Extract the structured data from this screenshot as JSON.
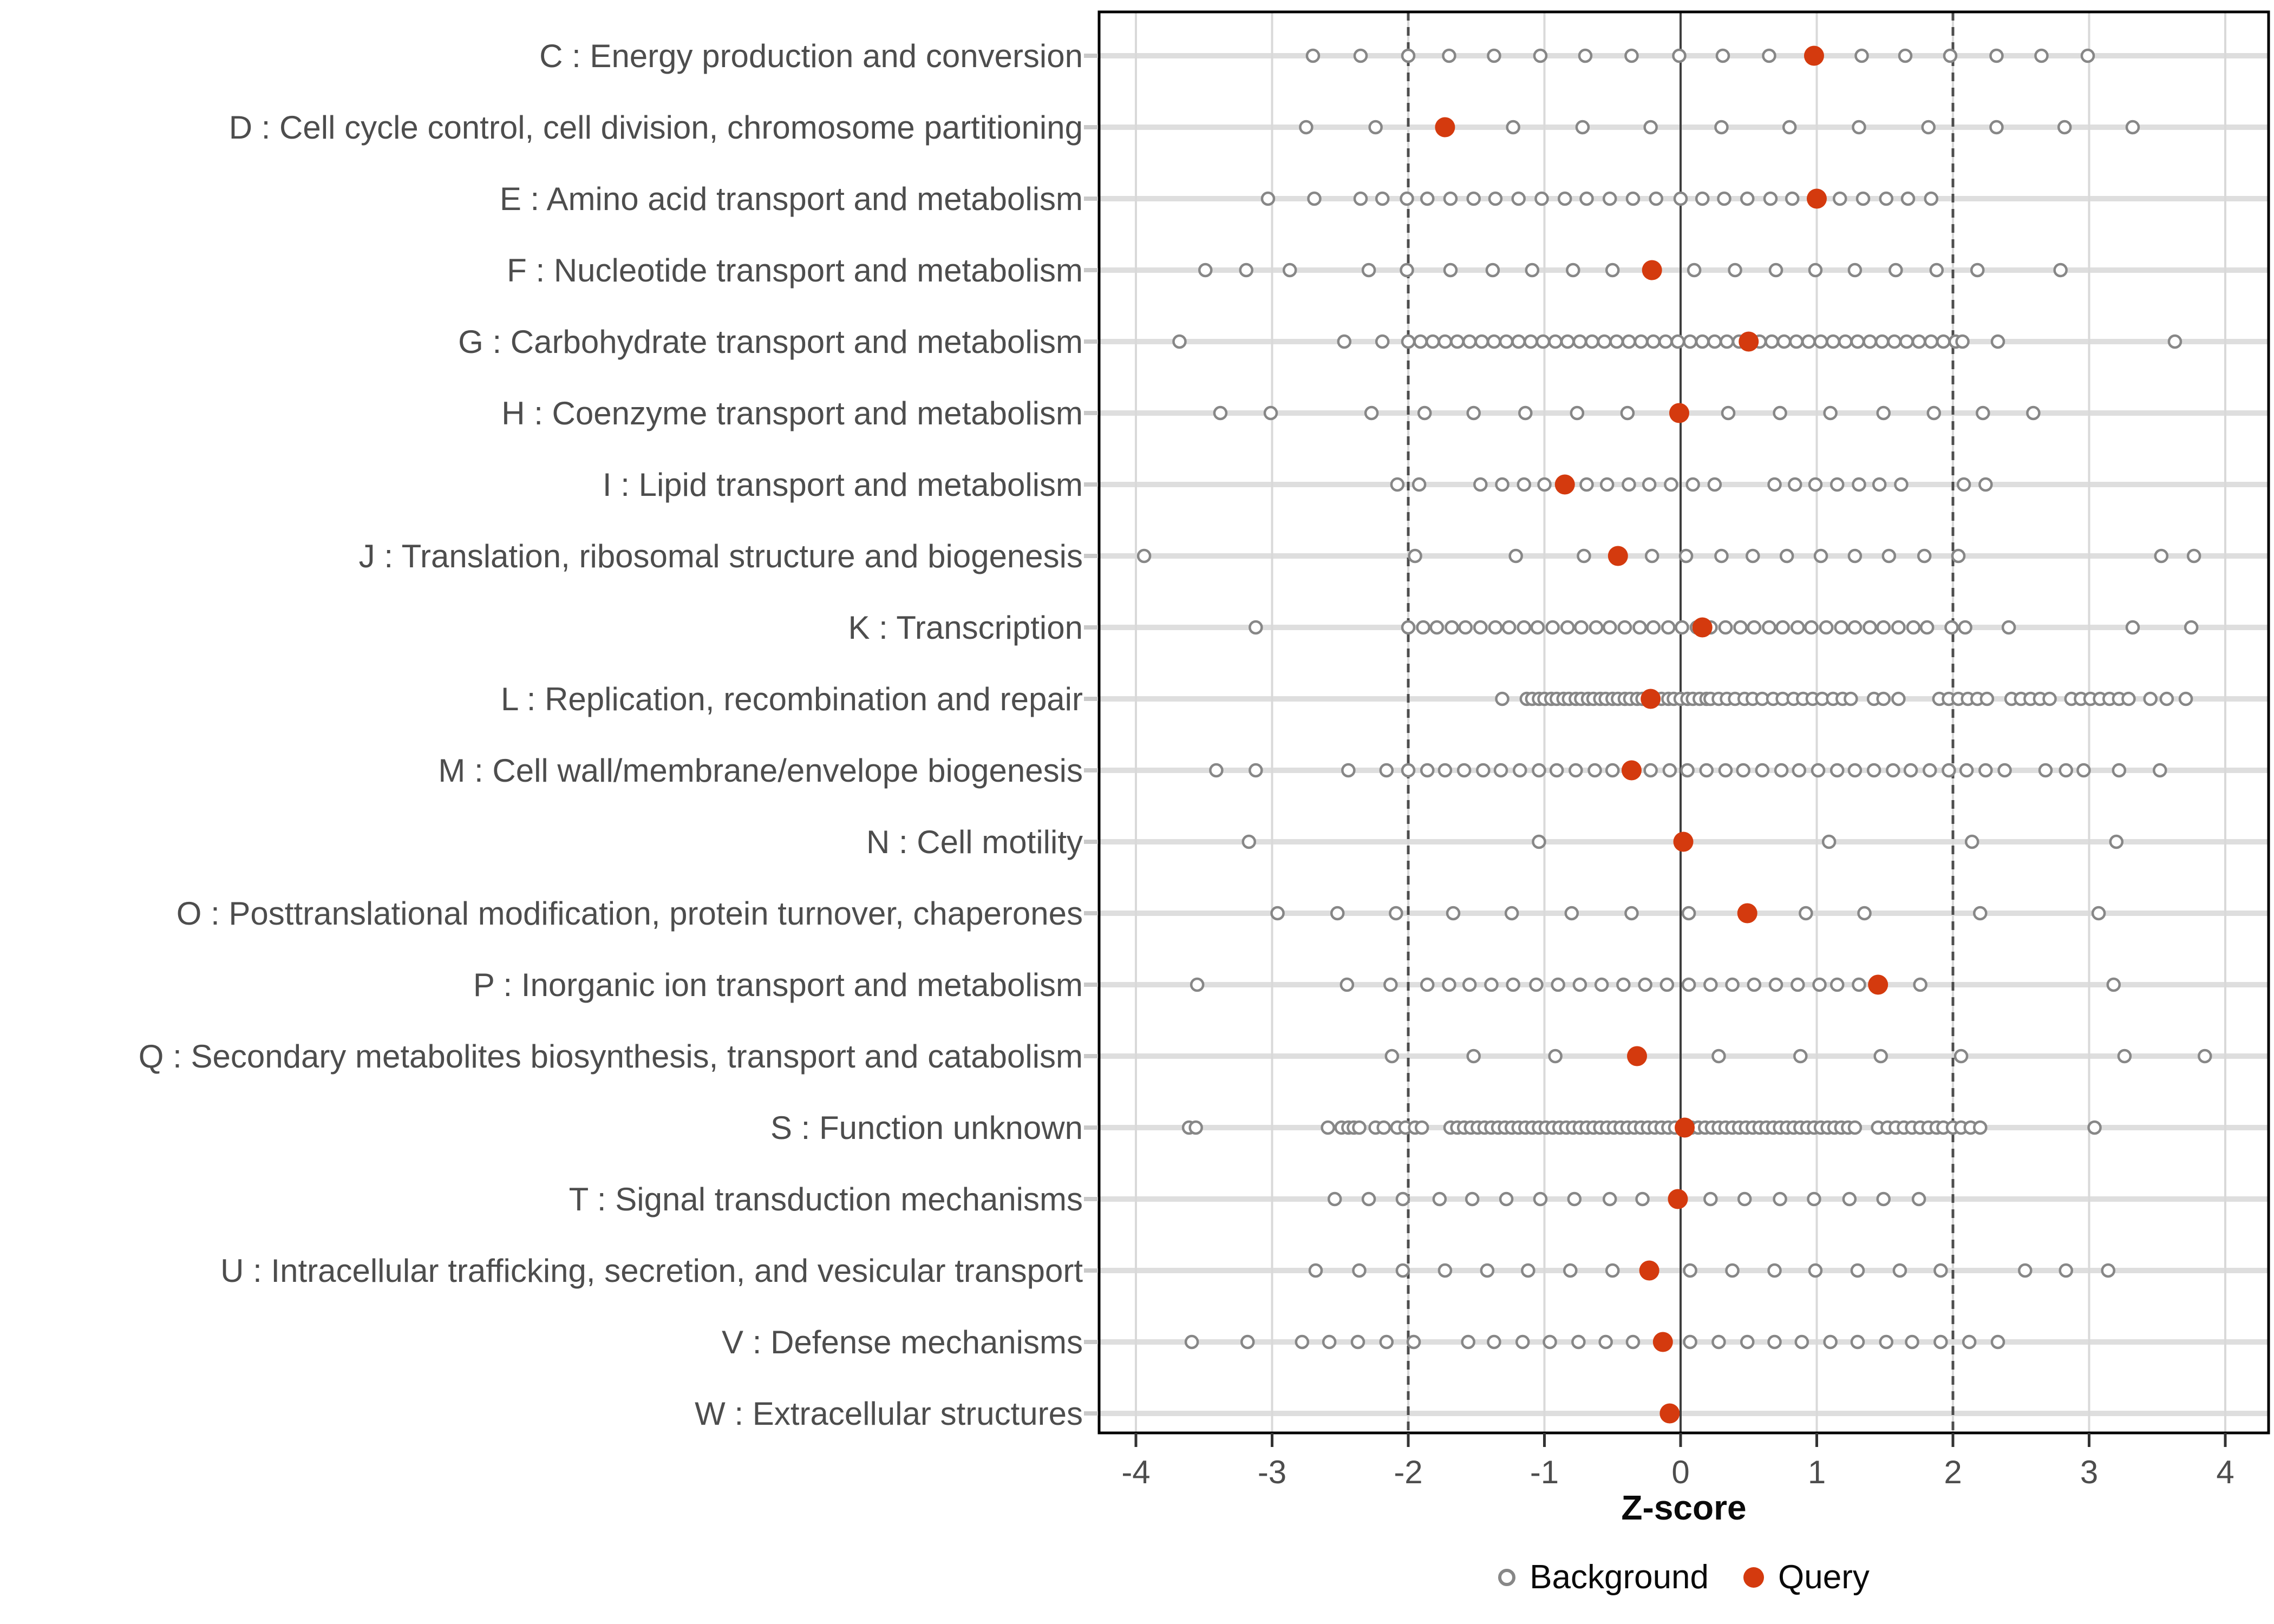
{
  "chart_data": {
    "type": "scatter",
    "title": "",
    "xlabel": "Z-score",
    "x_ticks": [
      -4,
      -3,
      -2,
      -1,
      0,
      1,
      2,
      3,
      4
    ],
    "xlim": [
      -4.3,
      4.35
    ],
    "grid": "major-vertical-and-row-stripes",
    "reference_lines": {
      "solid_at": 0,
      "dashed_at": [
        -2,
        2
      ]
    },
    "legend_position": "bottom-center",
    "legend": [
      {
        "label": "Background",
        "marker": "open-circle",
        "color": "#878787"
      },
      {
        "label": "Query",
        "marker": "filled-circle",
        "color": "#d43a0e"
      }
    ],
    "colors": {
      "query_dot": "#d43a0e",
      "background_dot_stroke": "#878787",
      "row_stripe": "#dedede",
      "gridline": "#d9d9d9",
      "dashed_line": "#4d4d4d",
      "zero_line": "#3d3d3d",
      "panel_border": "#000000",
      "axis_text": "#4d4d4d"
    },
    "categories": [
      {
        "code": "C",
        "label": "C : Energy production and conversion",
        "query": 0.98,
        "background": [
          -2.7,
          -2.35,
          -2.0,
          -1.7,
          -1.37,
          -1.03,
          -0.7,
          -0.36,
          -0.01,
          0.31,
          0.65,
          1.33,
          1.65,
          1.98,
          2.32,
          2.65,
          2.99
        ]
      },
      {
        "code": "D",
        "label": "D : Cell cycle control, cell division, chromosome partitioning",
        "query": -1.73,
        "background": [
          -2.75,
          -2.24,
          -1.23,
          -0.72,
          -0.22,
          0.3,
          0.8,
          1.31,
          1.82,
          2.32,
          2.82,
          3.32
        ]
      },
      {
        "code": "E",
        "label": "E : Amino acid transport and metabolism",
        "query": 1.0,
        "background": [
          -3.03,
          -2.69,
          -2.35,
          -2.19,
          -2.01,
          -1.86,
          -1.69,
          -1.52,
          -1.36,
          -1.19,
          -1.02,
          -0.85,
          -0.69,
          -0.52,
          -0.35,
          -0.18,
          0.0,
          0.16,
          0.32,
          0.49,
          0.66,
          0.82,
          1.17,
          1.34,
          1.51,
          1.67,
          1.84
        ]
      },
      {
        "code": "F",
        "label": "F : Nucleotide transport and metabolism",
        "query": -0.21,
        "background": [
          -3.49,
          -3.19,
          -2.87,
          -2.29,
          -2.01,
          -1.69,
          -1.38,
          -1.09,
          -0.79,
          -0.5,
          0.1,
          0.4,
          0.7,
          0.99,
          1.28,
          1.58,
          1.88,
          2.18,
          2.79
        ]
      },
      {
        "code": "G",
        "label": "G : Carbohydrate transport and metabolism",
        "query": 0.5,
        "background": [
          -3.68,
          -2.47,
          -2.19,
          -2.0,
          -1.91,
          -1.82,
          -1.73,
          -1.64,
          -1.55,
          -1.46,
          -1.37,
          -1.28,
          -1.19,
          -1.1,
          -1.01,
          -0.92,
          -0.83,
          -0.74,
          -0.65,
          -0.56,
          -0.47,
          -0.38,
          -0.29,
          -0.2,
          -0.11,
          -0.02,
          0.07,
          0.16,
          0.25,
          0.34,
          0.43,
          0.58,
          0.67,
          0.76,
          0.85,
          0.94,
          1.03,
          1.12,
          1.21,
          1.3,
          1.39,
          1.48,
          1.57,
          1.66,
          1.75,
          1.84,
          1.93,
          2.02,
          2.07,
          2.33,
          3.63
        ]
      },
      {
        "code": "H",
        "label": "H : Coenzyme transport and metabolism",
        "query": -0.01,
        "background": [
          -3.38,
          -3.01,
          -2.27,
          -1.88,
          -1.52,
          -1.14,
          -0.76,
          -0.39,
          0.35,
          0.73,
          1.1,
          1.49,
          1.86,
          2.22,
          2.59
        ]
      },
      {
        "code": "I",
        "label": "I : Lipid transport and metabolism",
        "query": -0.85,
        "background": [
          -2.08,
          -1.92,
          -1.47,
          -1.31,
          -1.15,
          -1.0,
          -0.69,
          -0.54,
          -0.38,
          -0.23,
          -0.07,
          0.09,
          0.25,
          0.69,
          0.84,
          0.99,
          1.15,
          1.31,
          1.46,
          1.62,
          2.08,
          2.24
        ]
      },
      {
        "code": "J",
        "label": "J : Translation, ribosomal structure and biogenesis",
        "query": -0.46,
        "background": [
          -3.94,
          -1.95,
          -1.21,
          -0.71,
          -0.21,
          0.04,
          0.3,
          0.53,
          0.78,
          1.03,
          1.28,
          1.53,
          1.79,
          2.04,
          3.53,
          3.77
        ]
      },
      {
        "code": "K",
        "label": "K : Transcription",
        "query": 0.16,
        "background": [
          -3.12,
          -2.0,
          -1.89,
          -1.79,
          -1.68,
          -1.58,
          -1.47,
          -1.36,
          -1.26,
          -1.15,
          -1.05,
          -0.94,
          -0.83,
          -0.73,
          -0.62,
          -0.52,
          -0.41,
          -0.3,
          -0.2,
          -0.09,
          0.01,
          0.12,
          0.22,
          0.33,
          0.44,
          0.54,
          0.65,
          0.75,
          0.86,
          0.96,
          1.07,
          1.18,
          1.28,
          1.39,
          1.49,
          1.6,
          1.71,
          1.81,
          1.99,
          2.09,
          2.41,
          3.32,
          3.75
        ]
      },
      {
        "code": "L",
        "label": "L : Replication, recombination and repair",
        "query": -0.22,
        "background": [
          -1.31,
          -1.13,
          -1.09,
          -1.04,
          -1.0,
          -0.95,
          -0.91,
          -0.86,
          -0.82,
          -0.77,
          -0.73,
          -0.68,
          -0.64,
          -0.59,
          -0.55,
          -0.5,
          -0.46,
          -0.41,
          -0.37,
          -0.32,
          -0.28,
          -0.23,
          -0.18,
          -0.14,
          -0.09,
          -0.05,
          0.0,
          0.05,
          0.09,
          0.14,
          0.19,
          0.22,
          0.28,
          0.34,
          0.4,
          0.47,
          0.53,
          0.6,
          0.68,
          0.75,
          0.83,
          0.9,
          0.97,
          1.04,
          1.12,
          1.19,
          1.25,
          1.42,
          1.49,
          1.6,
          1.9,
          1.97,
          2.04,
          2.11,
          2.18,
          2.25,
          2.43,
          2.5,
          2.57,
          2.64,
          2.71,
          2.87,
          2.94,
          3.01,
          3.08,
          3.15,
          3.22,
          3.29,
          3.45,
          3.57,
          3.71
        ]
      },
      {
        "code": "M",
        "label": "M : Cell wall/membrane/envelope biogenesis",
        "query": -0.36,
        "background": [
          -3.41,
          -3.12,
          -2.44,
          -2.16,
          -2.0,
          -1.86,
          -1.73,
          -1.59,
          -1.45,
          -1.32,
          -1.18,
          -1.04,
          -0.91,
          -0.77,
          -0.63,
          -0.5,
          -0.22,
          -0.08,
          0.05,
          0.19,
          0.33,
          0.46,
          0.6,
          0.74,
          0.87,
          1.01,
          1.15,
          1.28,
          1.42,
          1.56,
          1.69,
          1.83,
          1.97,
          2.1,
          2.24,
          2.38,
          2.68,
          2.83,
          2.96,
          3.22,
          3.52
        ]
      },
      {
        "code": "N",
        "label": "N : Cell motility",
        "query": 0.02,
        "background": [
          -3.17,
          -1.04,
          1.09,
          2.14,
          3.2
        ]
      },
      {
        "code": "O",
        "label": "O : Posttranslational modification, protein turnover, chaperones",
        "query": 0.49,
        "background": [
          -2.96,
          -2.52,
          -2.09,
          -1.67,
          -1.24,
          -0.8,
          -0.36,
          0.06,
          0.92,
          1.35,
          2.2,
          3.07
        ]
      },
      {
        "code": "P",
        "label": "P : Inorganic ion transport and metabolism",
        "query": 1.45,
        "background": [
          -3.55,
          -2.45,
          -2.13,
          -1.86,
          -1.7,
          -1.55,
          -1.39,
          -1.23,
          -1.06,
          -0.9,
          -0.74,
          -0.58,
          -0.42,
          -0.26,
          -0.1,
          0.06,
          0.22,
          0.38,
          0.54,
          0.7,
          0.86,
          1.02,
          1.15,
          1.31,
          1.76,
          3.18
        ]
      },
      {
        "code": "Q",
        "label": "Q : Secondary metabolites biosynthesis, transport and catabolism",
        "query": -0.32,
        "background": [
          -2.12,
          -1.52,
          -0.92,
          0.28,
          0.88,
          1.47,
          2.06,
          3.26,
          3.85
        ]
      },
      {
        "code": "S",
        "label": "S : Function unknown",
        "query": 0.03,
        "background": [
          -3.61,
          -3.56,
          -2.59,
          -2.49,
          -2.44,
          -2.4,
          -2.36,
          -2.24,
          -2.18,
          -2.08,
          -2.02,
          -1.95,
          -1.9,
          -1.69,
          -1.64,
          -1.59,
          -1.54,
          -1.49,
          -1.44,
          -1.39,
          -1.34,
          -1.29,
          -1.24,
          -1.19,
          -1.14,
          -1.09,
          -1.04,
          -0.99,
          -0.94,
          -0.89,
          -0.84,
          -0.79,
          -0.74,
          -0.69,
          -0.64,
          -0.59,
          -0.54,
          -0.49,
          -0.44,
          -0.39,
          -0.34,
          -0.29,
          -0.24,
          -0.19,
          -0.14,
          -0.09,
          -0.04,
          0.08,
          0.13,
          0.18,
          0.23,
          0.28,
          0.33,
          0.38,
          0.43,
          0.48,
          0.53,
          0.58,
          0.63,
          0.68,
          0.73,
          0.78,
          0.83,
          0.88,
          0.93,
          0.98,
          1.03,
          1.08,
          1.13,
          1.18,
          1.23,
          1.28,
          1.45,
          1.52,
          1.58,
          1.64,
          1.7,
          1.76,
          1.82,
          1.88,
          1.93,
          2.0,
          2.06,
          2.13,
          2.2,
          3.04
        ]
      },
      {
        "code": "T",
        "label": "T : Signal transduction mechanisms",
        "query": -0.02,
        "background": [
          -2.54,
          -2.29,
          -2.04,
          -1.77,
          -1.53,
          -1.28,
          -1.03,
          -0.78,
          -0.52,
          -0.28,
          0.22,
          0.47,
          0.73,
          0.98,
          1.24,
          1.49,
          1.75
        ]
      },
      {
        "code": "U",
        "label": "U : Intracellular trafficking, secretion, and vesicular transport",
        "query": -0.23,
        "background": [
          -2.68,
          -2.36,
          -2.04,
          -1.73,
          -1.42,
          -1.12,
          -0.81,
          -0.5,
          0.07,
          0.38,
          0.69,
          0.99,
          1.3,
          1.61,
          1.91,
          2.53,
          2.83,
          3.14
        ]
      },
      {
        "code": "V",
        "label": "V : Defense mechanisms",
        "query": -0.13,
        "background": [
          -3.59,
          -3.18,
          -2.78,
          -2.58,
          -2.37,
          -2.16,
          -1.96,
          -1.56,
          -1.37,
          -1.16,
          -0.96,
          -0.75,
          -0.55,
          -0.35,
          0.07,
          0.28,
          0.49,
          0.69,
          0.89,
          1.1,
          1.3,
          1.51,
          1.7,
          1.91,
          2.12,
          2.33
        ]
      },
      {
        "code": "W",
        "label": "W : Extracellular structures",
        "query": -0.08,
        "background": []
      }
    ]
  }
}
